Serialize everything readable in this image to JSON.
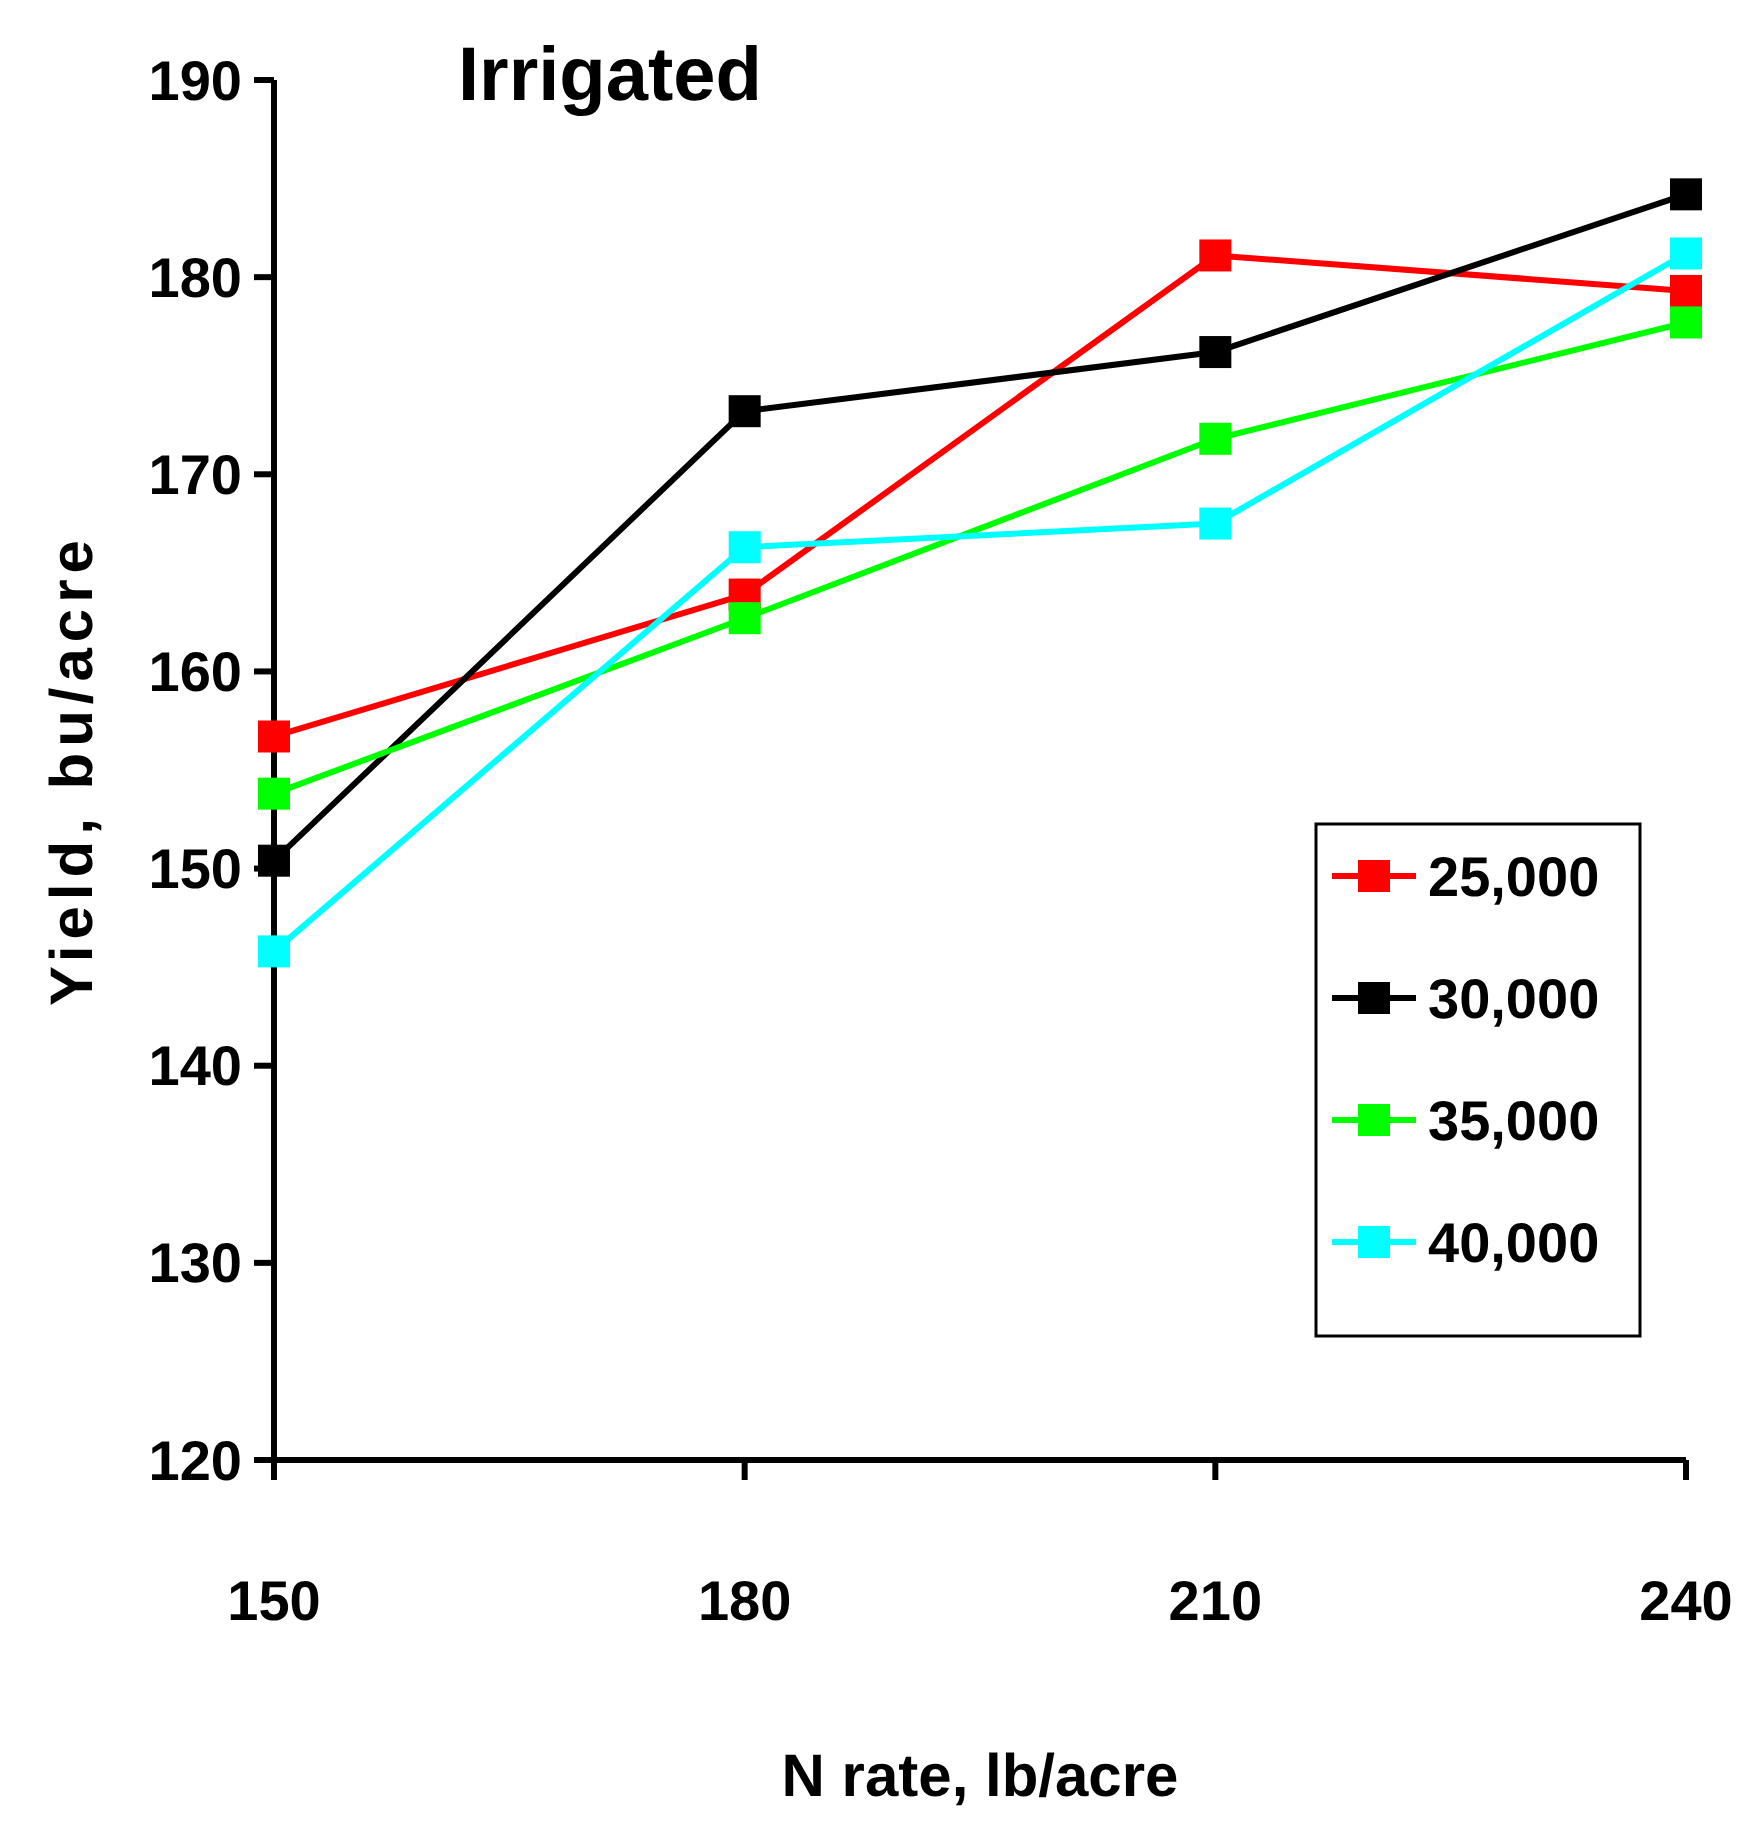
{
  "chart_data": {
    "type": "line",
    "title": "Irrigated",
    "xlabel": "N rate, lb/acre",
    "ylabel": "Yield, bu/acre",
    "x": [
      150,
      180,
      210,
      240
    ],
    "xlim": [
      150,
      240
    ],
    "xticks": [
      150,
      180,
      210,
      240
    ],
    "ylim": [
      120,
      190
    ],
    "yticks": [
      120,
      130,
      140,
      150,
      160,
      170,
      180,
      190
    ],
    "series": [
      {
        "name": "25,000",
        "color": "#ff0000",
        "values": [
          156.7,
          163.9,
          181.1,
          179.3
        ]
      },
      {
        "name": "30,000",
        "color": "#000000",
        "values": [
          150.4,
          173.2,
          176.2,
          184.2
        ]
      },
      {
        "name": "35,000",
        "color": "#00ff00",
        "values": [
          153.8,
          162.7,
          171.8,
          177.7
        ]
      },
      {
        "name": "40,000",
        "color": "#00ffff",
        "values": [
          145.8,
          166.3,
          167.5,
          181.2
        ]
      }
    ],
    "marker": "square",
    "line_style": "solid",
    "grid": false,
    "legend": "right"
  }
}
